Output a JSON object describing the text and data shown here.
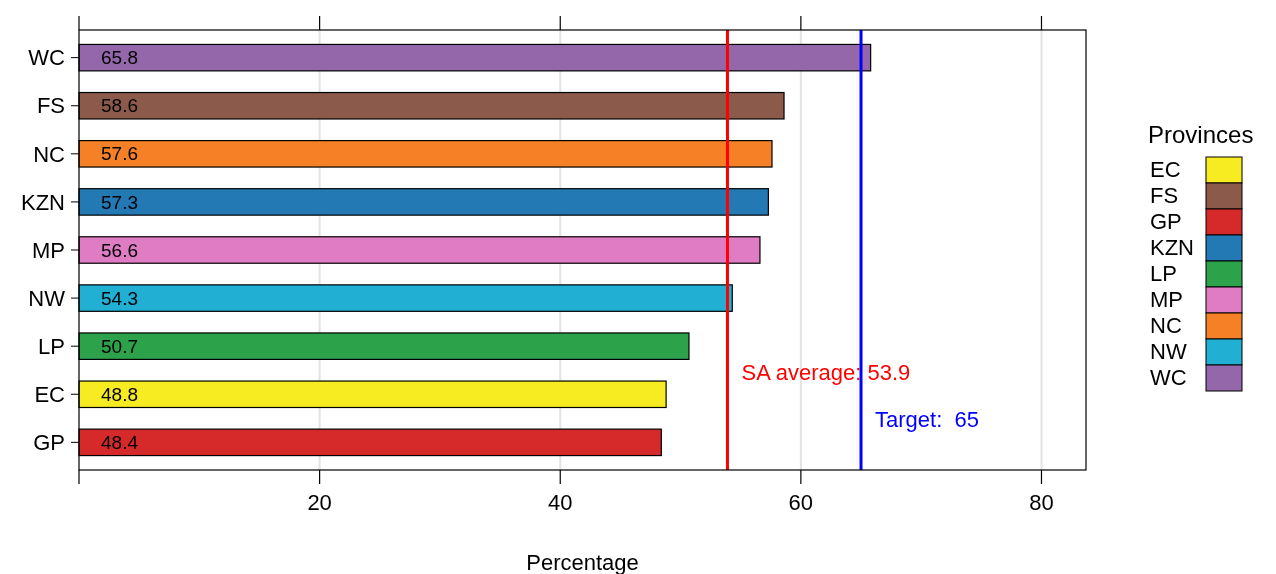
{
  "chart_data": {
    "type": "bar",
    "orientation": "horizontal",
    "xlabel": "Percentage",
    "legend_title": "Provinces",
    "categories": [
      "WC",
      "FS",
      "NC",
      "KZN",
      "MP",
      "NW",
      "LP",
      "EC",
      "GP"
    ],
    "series": [
      {
        "name": "EC",
        "color": "#f7ec22",
        "values": [
          null,
          null,
          null,
          null,
          null,
          null,
          null,
          48.8,
          null
        ]
      },
      {
        "name": "FS",
        "color": "#8c5a4b",
        "values": [
          null,
          58.6,
          null,
          null,
          null,
          null,
          null,
          null,
          null
        ]
      },
      {
        "name": "GP",
        "color": "#d62a2a",
        "values": [
          null,
          null,
          null,
          null,
          null,
          null,
          null,
          null,
          48.4
        ]
      },
      {
        "name": "KZN",
        "color": "#2379b4",
        "values": [
          null,
          null,
          null,
          57.3,
          null,
          null,
          null,
          null,
          null
        ]
      },
      {
        "name": "LP",
        "color": "#2ca24a",
        "values": [
          null,
          null,
          null,
          null,
          null,
          null,
          50.7,
          null,
          null
        ]
      },
      {
        "name": "MP",
        "color": "#e07cc4",
        "values": [
          null,
          null,
          null,
          null,
          56.6,
          null,
          null,
          null,
          null
        ]
      },
      {
        "name": "NC",
        "color": "#f58025",
        "values": [
          null,
          null,
          57.6,
          null,
          null,
          null,
          null,
          null,
          null
        ]
      },
      {
        "name": "NW",
        "color": "#21b0d4",
        "values": [
          null,
          null,
          null,
          null,
          null,
          54.3,
          null,
          null,
          null
        ]
      },
      {
        "name": "WC",
        "color": "#9467ab",
        "values": [
          65.8,
          null,
          null,
          null,
          null,
          null,
          null,
          null,
          null
        ]
      }
    ],
    "xlim": [
      0,
      83.7
    ],
    "xticks": [
      {
        "value": 0,
        "label": null
      },
      20,
      40,
      60,
      80
    ],
    "grid": "x",
    "data_labels": true,
    "legend": "right",
    "ref_lines": [
      {
        "axis": "x",
        "value": 53.9,
        "label": "SA average: 53.9",
        "color": "#ff0000"
      },
      {
        "axis": "x",
        "value": 65,
        "label": "Target:  65",
        "color": "#0000ff"
      }
    ]
  }
}
